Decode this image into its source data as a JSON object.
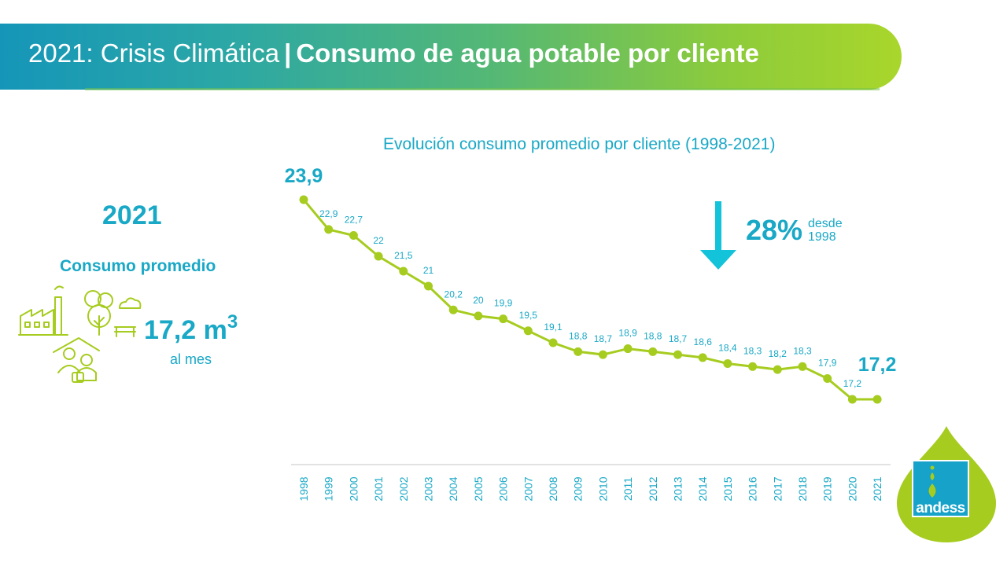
{
  "header": {
    "title_part1": "2021: Crisis Climática",
    "separator": "|",
    "title_part2": "Consumo de agua potable por cliente",
    "gradient_start": "#1596b8",
    "gradient_end": "#a9d62b"
  },
  "summary": {
    "year": "2021",
    "label": "Consumo promedio",
    "value": "17,2 m",
    "unit_sup": "3",
    "period": "al mes",
    "icon_names": [
      "factory-icon",
      "tree-icon",
      "cloud-icon",
      "bench-icon",
      "house-family-icon"
    ]
  },
  "callout": {
    "percent": "28%",
    "desc_line1": "desde",
    "desc_line2": "1998",
    "arrow": "down-arrow-icon"
  },
  "logo": {
    "text": "andess"
  },
  "colors": {
    "accent": "#19a8c6",
    "line": "#a6cc1f",
    "axis": "#d9d9d9"
  },
  "chart_data": {
    "type": "line",
    "title": "Evolución consumo promedio por cliente (1998-2021)",
    "xlabel": "",
    "ylabel": "",
    "ylim": [
      15,
      25
    ],
    "grid": false,
    "legend": "none",
    "categories": [
      "1998",
      "1999",
      "2000",
      "2001",
      "2002",
      "2003",
      "2004",
      "2005",
      "2006",
      "2007",
      "2008",
      "2009",
      "2010",
      "2011",
      "2012",
      "2013",
      "2014",
      "2015",
      "2016",
      "2017",
      "2018",
      "2019",
      "2020",
      "2021"
    ],
    "series": [
      {
        "values": [
          23.9,
          22.9,
          22.7,
          22,
          21.5,
          21,
          20.2,
          20,
          19.9,
          19.5,
          19.1,
          18.8,
          18.7,
          18.9,
          18.8,
          18.7,
          18.6,
          18.4,
          18.3,
          18.2,
          18.3,
          17.9,
          17.2,
          17.2
        ],
        "labels": [
          "23,9",
          "22,9",
          "22,7",
          "22",
          "21,5",
          "21",
          "20,2",
          "20",
          "19,9",
          "19,5",
          "19,1",
          "18,8",
          "18,7",
          "18,9",
          "18,8",
          "18,7",
          "18,6",
          "18,4",
          "18,3",
          "18,2",
          "18,3",
          "17,9",
          "17,2",
          "17,2"
        ]
      }
    ]
  }
}
